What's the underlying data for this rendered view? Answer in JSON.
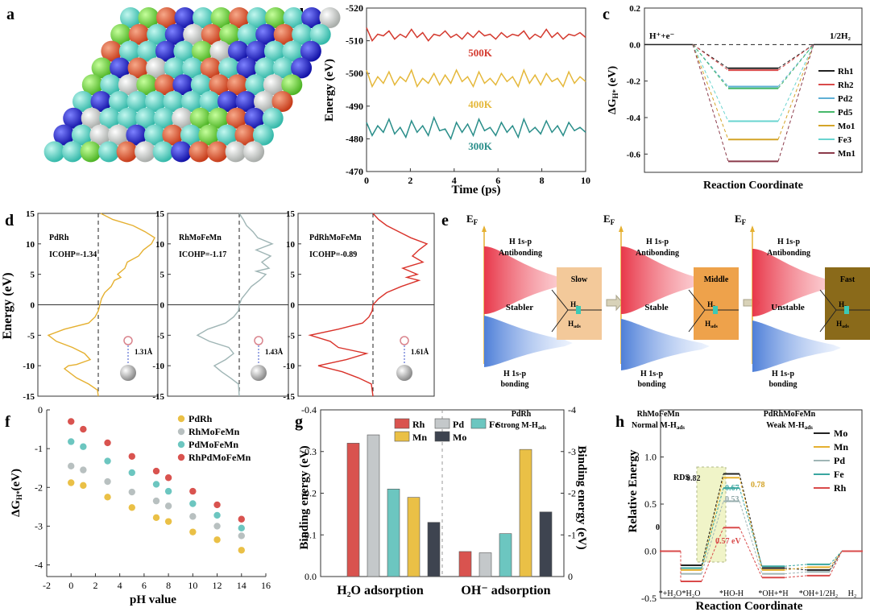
{
  "figure": {
    "panel_letters": [
      "a",
      "b",
      "c",
      "d",
      "e",
      "f",
      "g",
      "h"
    ]
  },
  "chart_data": [
    {
      "panel": "a",
      "type": "other",
      "description_colors": [
        "#e2572b",
        "#2c2fd6",
        "#6fd49b",
        "#7be34a",
        "#d9dcd9",
        "#5ad7c9"
      ]
    },
    {
      "panel": "b",
      "type": "line",
      "xlabel": "Time (ps)",
      "ylabel": "Energy (eV)",
      "xlim": [
        0,
        10
      ],
      "ylim": [
        -470,
        -520
      ],
      "xticks": [
        "0",
        "2",
        "4",
        "6",
        "8",
        "10"
      ],
      "yticks": [
        "-470",
        "-480",
        "-490",
        "-500",
        "-510",
        "-520"
      ],
      "series": [
        {
          "name": "500K",
          "color": "#d43a2f",
          "base": -512,
          "amp": 2.5,
          "values": [
            -514,
            -510,
            -512,
            -511.5,
            -513,
            -510.5,
            -512,
            -511,
            -513.5,
            -511,
            -512.5,
            -510,
            -512,
            -511.5,
            -513,
            -511,
            -512,
            -510.5,
            -512.5,
            -511,
            -513,
            -511.5,
            -512,
            -510.5,
            -512.5,
            -511,
            -512,
            -511.5,
            -513,
            -510.5,
            -512,
            -511,
            -513.5,
            -511,
            -512.5,
            -510.5,
            -512,
            -511.5,
            -512.5,
            -511
          ]
        },
        {
          "name": "400K",
          "color": "#e5b83b",
          "base": -498,
          "amp": 3,
          "values": [
            -501,
            -496,
            -499,
            -497,
            -500.5,
            -496.5,
            -499,
            -497.5,
            -501,
            -496,
            -498.5,
            -497,
            -500,
            -496.5,
            -499.5,
            -497,
            -501,
            -497.5,
            -499,
            -496,
            -500.5,
            -497,
            -498.5,
            -496.5,
            -500,
            -497.5,
            -499,
            -496,
            -501,
            -497,
            -499.5,
            -496.5,
            -500,
            -497.5,
            -498.5,
            -496,
            -500.5,
            -497,
            -499,
            -497.5
          ]
        },
        {
          "name": "300K",
          "color": "#2a8e8a",
          "base": -483,
          "amp": 3,
          "values": [
            -485,
            -481,
            -484,
            -482,
            -486,
            -481.5,
            -483.5,
            -480.5,
            -485.5,
            -482,
            -484,
            -481,
            -486.5,
            -482.5,
            -483,
            -480,
            -485,
            -482,
            -484.5,
            -481,
            -486,
            -482.5,
            -483.5,
            -481,
            -485,
            -482,
            -484,
            -480.5,
            -486,
            -482,
            -483.5,
            -481.5,
            -485.5,
            -482,
            -484,
            -481,
            -485,
            -482.5,
            -483.5,
            -482
          ]
        }
      ]
    },
    {
      "panel": "c",
      "type": "line",
      "xlabel": "Reaction Coordinate",
      "ylabel": "ΔG_H* (eV)",
      "ylim": [
        -0.7,
        0.2
      ],
      "yticks": [
        "0.2",
        "0.0",
        "-0.2",
        "-0.4",
        "-0.6"
      ],
      "left_label": "H⁺+e⁻",
      "right_label": "1/2H₂",
      "series": [
        {
          "name": "Rh1",
          "color": "#222222",
          "value": -0.13
        },
        {
          "name": "Rh2",
          "color": "#d94a4a",
          "value": -0.14
        },
        {
          "name": "Pd2",
          "color": "#5fb0d5",
          "value": -0.23
        },
        {
          "name": "Pd5",
          "color": "#46b86a",
          "value": -0.24
        },
        {
          "name": "Mo1",
          "color": "#d4a428",
          "value": -0.52
        },
        {
          "name": "Fe3",
          "color": "#69d4d0",
          "value": -0.42
        },
        {
          "name": "Mn1",
          "color": "#8b3a4a",
          "value": -0.64
        }
      ]
    },
    {
      "panel": "d",
      "type": "line",
      "ylabel": "Energy (eV)",
      "ylim": [
        -15,
        15
      ],
      "yticks": [
        "15",
        "10",
        "5",
        "0",
        "-5",
        "-10",
        "-15"
      ],
      "subplots": [
        {
          "name": "PdRh",
          "icohp": "ICOHP=-1.34",
          "bond": "1.31Å",
          "color": "#e5b030"
        },
        {
          "name": "RhMoFeMn",
          "icohp": "ICOHP=-1.17",
          "bond": "1.43Å",
          "color": "#9fb5b5"
        },
        {
          "name": "PdRhMoFeMn",
          "icohp": "ICOHP=-0.89",
          "bond": "1.61Å",
          "color": "#d9322a"
        }
      ]
    },
    {
      "panel": "e",
      "type": "other",
      "ef_label": "E",
      "ef_sub": "F",
      "sections": [
        {
          "antibonding": "H 1s-p\nAntibonding",
          "state": "Stabler",
          "bonding": "H 1s-p\nbonding",
          "speed": "Slow",
          "name": "PdRh",
          "strength": "Strong M-H",
          "box_color": "#f3c99a"
        },
        {
          "antibonding": "H 1s-p\nAntibonding",
          "state": "Stable",
          "bonding": "H 1s-p\nbonding",
          "speed": "Middle",
          "name": "RhMoFeMn",
          "strength": "Normal M-H",
          "box_color": "#eea24b"
        },
        {
          "antibonding": "H 1s-p\nAntibonding",
          "state": "Unstable",
          "bonding": "H 1s-p\nbonding",
          "speed": "Fast",
          "name": "PdRhMoFeMn",
          "strength": "Weak M-H",
          "box_color": "#8a6a1a"
        }
      ]
    },
    {
      "panel": "f",
      "type": "scatter",
      "xlabel": "pH value",
      "ylabel": "ΔG_H* (eV)",
      "xlim": [
        -2,
        16
      ],
      "ylim": [
        -4.3,
        0
      ],
      "xticks": [
        "-2",
        "0",
        "2",
        "4",
        "6",
        "8",
        "10",
        "12",
        "14",
        "16"
      ],
      "yticks": [
        "0",
        "-1",
        "-2",
        "-3",
        "-4"
      ],
      "x": [
        0,
        1,
        3,
        5,
        7,
        8,
        10,
        12,
        14
      ],
      "series": [
        {
          "name": "PdRh",
          "color": "#eac046",
          "values": [
            -1.88,
            -1.95,
            -2.25,
            -2.52,
            -2.78,
            -2.88,
            -3.15,
            -3.35,
            -3.62
          ]
        },
        {
          "name": "RhMoFeMn",
          "color": "#b8c0c0",
          "values": [
            -1.45,
            -1.55,
            -1.85,
            -2.12,
            -2.35,
            -2.48,
            -2.75,
            -3.0,
            -3.25
          ]
        },
        {
          "name": "PdMoFeMn",
          "color": "#6cc6c0",
          "values": [
            -0.82,
            -0.95,
            -1.32,
            -1.62,
            -1.92,
            -2.1,
            -2.42,
            -2.72,
            -3.05
          ]
        },
        {
          "name": "RhPdMoFeMn",
          "color": "#d9534f",
          "values": [
            -0.3,
            -0.5,
            -0.85,
            -1.2,
            -1.58,
            -1.75,
            -2.1,
            -2.45,
            -2.82
          ]
        }
      ]
    },
    {
      "panel": "g",
      "type": "bar",
      "ylabel_left": "Binding energy (eV)",
      "ylabel_right": "Binding energy (eV)",
      "ylim_left": [
        0,
        -0.4
      ],
      "ylim_right": [
        0,
        -4
      ],
      "yticks_left": [
        "0.0",
        "-0.1",
        "-0.2",
        "-0.3",
        "-0.4"
      ],
      "yticks_right": [
        "0",
        "-1",
        "-2",
        "-3",
        "-4"
      ],
      "categories": [
        "H₂O adsorption",
        "OH⁻ adsorption"
      ],
      "legend": [
        "Rh",
        "Pd",
        "Fe",
        "Mn",
        "Mo"
      ],
      "series": [
        {
          "name": "Rh",
          "color": "#d9534f",
          "values": [
            -0.32,
            -0.6
          ]
        },
        {
          "name": "Pd",
          "color": "#c4c8ca",
          "values": [
            -0.34,
            -0.57
          ]
        },
        {
          "name": "Fe",
          "color": "#6cc6c0",
          "values": [
            -0.21,
            -1.03
          ]
        },
        {
          "name": "Mn",
          "color": "#eac046",
          "values": [
            -0.19,
            -3.05
          ]
        },
        {
          "name": "Mo",
          "color": "#3e4450",
          "values": [
            -0.13,
            -1.55
          ]
        }
      ]
    },
    {
      "panel": "h",
      "type": "line",
      "xlabel": "Reaction Coordinate",
      "ylabel": "Relative Energy",
      "ylim": [
        -0.5,
        1.5
      ],
      "yticks": [
        "1.0",
        "0.5",
        "0.0",
        "-0.5"
      ],
      "xticks": [
        "*+H₂O",
        "*H₂O",
        "*HO-H",
        "*OH+*H",
        "*OH+1/2H₂",
        "H₂"
      ],
      "annotations": {
        "zero": "0",
        "rds": "RDS",
        "rh_barrier": "0.57 eV"
      },
      "series": [
        {
          "name": "Mo",
          "color": "#222222",
          "values": [
            0,
            -0.15,
            0.82,
            -0.18,
            -0.2,
            0
          ],
          "label": "0.82"
        },
        {
          "name": "Mn",
          "color": "#e5b030",
          "values": [
            0,
            -0.2,
            0.78,
            -0.2,
            -0.17,
            0
          ],
          "label": "0.78"
        },
        {
          "name": "Pd",
          "color": "#9fb5b5",
          "values": [
            0,
            -0.24,
            0.53,
            -0.24,
            -0.22,
            0
          ],
          "label": "0.53"
        },
        {
          "name": "Fe",
          "color": "#3aa6a0",
          "values": [
            0,
            -0.18,
            0.67,
            -0.16,
            -0.14,
            0
          ],
          "label": "0.67"
        },
        {
          "name": "Rh",
          "color": "#d94a4a",
          "values": [
            0,
            -0.32,
            0.25,
            -0.28,
            -0.26,
            0
          ],
          "label": ""
        }
      ]
    }
  ]
}
